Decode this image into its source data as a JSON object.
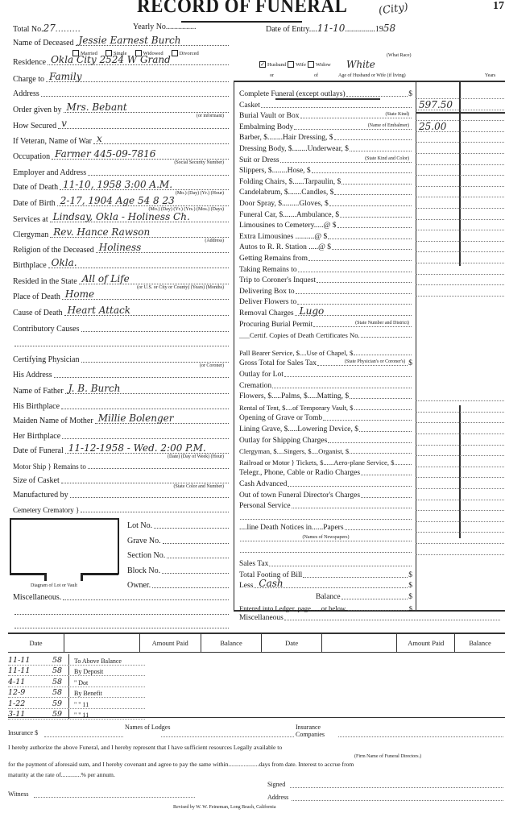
{
  "header": {
    "title": "RECORD OF FUNERAL",
    "corner_note": "(City)",
    "corner_number": "17",
    "total_no_label": "Total No.",
    "total_no": "27",
    "yearly_no_label": "Yearly No.",
    "date_of_entry_label": "Date of Entry",
    "date_of_entry": "11-10",
    "year_prefix": "19",
    "year_suffix": "58"
  },
  "marital": {
    "options": [
      "Married",
      "Single",
      "Widowed",
      "Divorced"
    ]
  },
  "spouse": {
    "options": [
      "Husband",
      "Wife",
      "Widow"
    ],
    "checked": "Husband",
    "race_label": "(What Race)",
    "race": "White",
    "or_label": "or",
    "of_label": "of",
    "age_label": "Age of Husband or Wife (if living)",
    "years_label": "Years"
  },
  "left_fields": [
    {
      "label": "Name of Deceased",
      "value": "Jessie Earnest Burch",
      "note": ""
    },
    {
      "label": "Residence",
      "value": "Okla City 2524 W Grand",
      "note": ""
    },
    {
      "label": "Charge to",
      "value": "Family",
      "note": ""
    },
    {
      "label": "Address",
      "value": "",
      "note": ""
    },
    {
      "label": "Order given by",
      "value": "Mrs. Bebant",
      "note": "(or informant)"
    },
    {
      "label": "How Secured",
      "value": "v",
      "note": ""
    },
    {
      "label": "If Veteran, Name of War",
      "value": "x",
      "note": ""
    },
    {
      "label": "Occupation",
      "value": "Farmer      445-09-7816",
      "note": "(Social Security Number)"
    },
    {
      "label": "Employer and Address",
      "value": "",
      "note": ""
    },
    {
      "label": "Date of Death",
      "value": "11-10, 1958   3:00 A.M.",
      "note": "(Mo.)   (Day)   (Yr.)   (Hour)"
    },
    {
      "label": "Date of Birth",
      "value": "2-17, 1904 Age 54  8  23",
      "note": "(Mo.) (Day) (Yr.) (Yrs.) (Mos.) (Days)"
    },
    {
      "label": "Services at",
      "value": "Lindsay, Okla - Holiness Ch.",
      "note": ""
    },
    {
      "label": "Clergyman",
      "value": "Rev. Hance Rawson",
      "note": "(Address)"
    },
    {
      "label": "Religion of the Deceased",
      "value": "Holiness",
      "note": ""
    },
    {
      "label": "Birthplace",
      "value": "Okla.",
      "note": ""
    },
    {
      "label": "Resided in the State",
      "value": "All of Life",
      "note": "(or U.S. or City or County)  (Years)  (Months)"
    },
    {
      "label": "Place of Death",
      "value": "Home",
      "note": ""
    },
    {
      "label": "Cause of Death",
      "value": "Heart Attack",
      "note": ""
    },
    {
      "label": "Contributory Causes",
      "value": "",
      "note": ""
    },
    {
      "label": "",
      "value": "",
      "note": ""
    },
    {
      "label": "Certifying Physician",
      "value": "",
      "note": "(or Coroner)"
    },
    {
      "label": "His Address",
      "value": "",
      "note": ""
    },
    {
      "label": "Name of Father",
      "value": "J. B. Burch",
      "note": ""
    },
    {
      "label": "His Birthplace",
      "value": "",
      "note": ""
    },
    {
      "label": "Maiden Name of Mother",
      "value": "Millie Bolenger",
      "note": ""
    },
    {
      "label": "Her Birthplace",
      "value": "",
      "note": ""
    },
    {
      "label": "Date of Funeral",
      "value": "11-12-1958 - Wed.   2:00 P.M.",
      "note": "(Date)   (Day of Week)   (Hour)"
    },
    {
      "label": "Motor Ship } Remains to",
      "value": "",
      "note": ""
    },
    {
      "label": "Size of Casket",
      "value": "",
      "note": "(State Color and Number)"
    },
    {
      "label": "Manufactured by",
      "value": "",
      "note": ""
    },
    {
      "label": "Cemetery Crematory }",
      "value": "",
      "note": ""
    }
  ],
  "lot": {
    "diagram_label": "Diagram of Lot or Vault",
    "fields": [
      "Lot No.",
      "Grave No.",
      "Section No.",
      "Block No.",
      "Owner."
    ]
  },
  "misc_left_label": "Miscellaneous.",
  "charges": [
    {
      "label": "Complete Funeral (except outlays)",
      "value": "",
      "amount": ""
    },
    {
      "label": "Casket",
      "value": "",
      "amount": "597.50"
    },
    {
      "label": "Burial Vault or Box",
      "value": "",
      "amount": ""
    },
    {
      "label": "Embalming Body",
      "value": "",
      "amount": "25.00"
    },
    {
      "label": "Barber, $........Hair Dressing, $",
      "value": "",
      "amount": ""
    },
    {
      "label": "Dressing Body, $........Underwear, $",
      "value": "",
      "amount": ""
    },
    {
      "label": "Suit or Dress",
      "value": "",
      "amount": ""
    },
    {
      "label": "Slippers, $........Hose, $",
      "value": "",
      "amount": ""
    },
    {
      "label": "Folding Chairs, $......Tarpaulin, $",
      "value": "",
      "amount": ""
    },
    {
      "label": "Candelabrum, $.......Candles, $",
      "value": "",
      "amount": ""
    },
    {
      "label": "Door Spray, $.........Gloves, $",
      "value": "",
      "amount": ""
    },
    {
      "label": "Funeral Car, $.......Ambulance, $",
      "value": "",
      "amount": ""
    },
    {
      "label": "Limousines to Cemetery.....@ $",
      "value": "",
      "amount": ""
    },
    {
      "label": "Extra Limousines ..........@ $",
      "value": "",
      "amount": ""
    },
    {
      "label": "Autos to R. R. Station .....@ $",
      "value": "",
      "amount": ""
    },
    {
      "label": "Getting Remains from",
      "value": "",
      "amount": ""
    },
    {
      "label": "Taking Remains to",
      "value": "",
      "amount": ""
    },
    {
      "label": "Trip to Coroner's Inquest",
      "value": "",
      "amount": ""
    },
    {
      "label": "Delivering Box to",
      "value": "",
      "amount": ""
    },
    {
      "label": "Deliver Flowers to",
      "value": "",
      "amount": ""
    },
    {
      "label": "Removal Charges",
      "value": "Lugo",
      "amount": ""
    },
    {
      "label": "Procuring Burial Permit",
      "value": "",
      "amount": ""
    },
    {
      "label": "___Certif. Copies of Death Certificates No.",
      "value": "",
      "amount": ""
    },
    {
      "label": "Pall Bearer Service, $....Use of Chapel, $",
      "value": "",
      "amount": ""
    },
    {
      "label": "Gross Total for Sales Tax",
      "value": "",
      "amount": ""
    },
    {
      "label": "Outlay for Lot",
      "value": "",
      "amount": ""
    },
    {
      "label": "Cremation",
      "value": "",
      "amount": ""
    },
    {
      "label": "Flowers, $.....Palms, $.....Matting, $",
      "value": "",
      "amount": ""
    },
    {
      "label": "Rental of Tent, $....of Temporary Vault, $",
      "value": "",
      "amount": ""
    },
    {
      "label": "Opening of Grave or Tomb",
      "value": "",
      "amount": ""
    },
    {
      "label": "Lining Grave, $.....Lowering Device, $",
      "value": "",
      "amount": ""
    },
    {
      "label": "Outlay for Shipping Charges",
      "value": "",
      "amount": ""
    },
    {
      "label": "Clergyman, $....Singers, $....Organist, $",
      "value": "",
      "amount": ""
    },
    {
      "label": "Railroad or Motor } Tickets, $......Aero-plane Service, $",
      "value": "",
      "amount": ""
    },
    {
      "label": "Telegr., Phone, Cable or Radio Charges",
      "value": "",
      "amount": ""
    },
    {
      "label": "Cash Advanced",
      "value": "",
      "amount": ""
    },
    {
      "label": "Out of town Funeral Director's Charges",
      "value": "",
      "amount": ""
    },
    {
      "label": "Personal Service",
      "value": "",
      "amount": ""
    },
    {
      "label": "",
      "value": "",
      "amount": ""
    },
    {
      "label": "....line Death Notices in......Papers",
      "value": "",
      "amount": ""
    },
    {
      "label": "",
      "value": "",
      "amount": ""
    },
    {
      "label": "",
      "value": "",
      "amount": ""
    },
    {
      "label": "Sales Tax",
      "value": "",
      "amount": ""
    },
    {
      "label": "Total Footing of Bill",
      "value": "",
      "amount": ""
    },
    {
      "label": "Less",
      "value": "Cash",
      "amount": ""
    },
    {
      "label": "Balance",
      "value": "",
      "amount": ""
    },
    {
      "label": "Entered into Ledger, page......or below.",
      "value": "",
      "amount": ""
    }
  ],
  "charge_notes": {
    "state_kind": "(State Kind)",
    "embalmer": "(Name of Embalmer)",
    "kind_color": "(State Kind and Color)",
    "state_number": "(State Number and District)",
    "physician": "(State Physician's or Coroner's)",
    "newspapers": "(Names of Newspapers)"
  },
  "misc_right_label": "Miscellaneous",
  "payments": {
    "headers": [
      "Date",
      "",
      "Amount Paid",
      "Balance",
      "Date",
      "",
      "Amount Paid",
      "Balance"
    ],
    "rows": [
      {
        "date": "11-11",
        "year": "58",
        "text": "To Above Balance"
      },
      {
        "date": "11-11",
        "year": "58",
        "text": "By Deposit"
      },
      {
        "date": "4-11",
        "year": "58",
        "text": "\" Dot"
      },
      {
        "date": "12-9",
        "year": "58",
        "text": "By Benefit"
      },
      {
        "date": "1-22",
        "year": "59",
        "text": "\"   \" 11"
      },
      {
        "date": "3-11",
        "year": "59",
        "text": "\"   \" 11"
      }
    ]
  },
  "footer": {
    "insurance": "Insurance $",
    "lodges": "Names of Lodges",
    "companies": "Insurance Companies",
    "auth1": "I hereby authorize the above Funeral, and I hereby represent that I have sufficient resources Legally available to",
    "firm_note": "(Firm Name of Funeral Directors.)",
    "auth2": "for the payment of aforesaid sum, and I hereby covenant and agree to pay the same within....................days from date.   Interest to accrue from",
    "auth3": "maturity at the rate of.............% per annum.",
    "signed": "Signed",
    "witness": "Witness",
    "address": "Address",
    "revised": "Revised by W. W. Feineman, Long Beach, California"
  }
}
